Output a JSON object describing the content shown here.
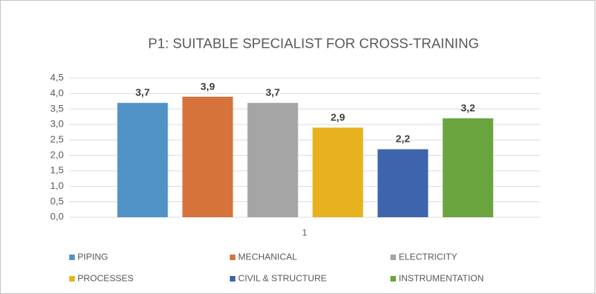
{
  "chart_data": {
    "type": "bar",
    "title": "P1: SUITABLE SPECIALIST FOR CROSS-TRAINING",
    "categories": [
      "1"
    ],
    "series": [
      {
        "name": "PIPING",
        "color": "#5193c6",
        "values": [
          3.7
        ],
        "value_labels": [
          "3,7"
        ]
      },
      {
        "name": "MECHANICAL",
        "color": "#d5733a",
        "values": [
          3.9
        ],
        "value_labels": [
          "3,9"
        ]
      },
      {
        "name": "ELECTRICITY",
        "color": "#a5a5a5",
        "values": [
          3.7
        ],
        "value_labels": [
          "3,7"
        ]
      },
      {
        "name": "PROCESSES",
        "color": "#e8b21f",
        "values": [
          2.9
        ],
        "value_labels": [
          "2,9"
        ]
      },
      {
        "name": "CIVIL & STRUCTURE",
        "color": "#3e64ae",
        "values": [
          2.2
        ],
        "value_labels": [
          "2,2"
        ]
      },
      {
        "name": "INSTRUMENTATION",
        "color": "#6aa43f",
        "values": [
          3.2
        ],
        "value_labels": [
          "3,2"
        ]
      }
    ],
    "ylim": [
      0,
      4.5
    ],
    "yticks": [
      {
        "value": 0,
        "label": "0,0"
      },
      {
        "value": 0.5,
        "label": "0,5"
      },
      {
        "value": 1,
        "label": "1,0"
      },
      {
        "value": 1.5,
        "label": "1,5"
      },
      {
        "value": 2,
        "label": "2,0"
      },
      {
        "value": 2.5,
        "label": "2,5"
      },
      {
        "value": 3,
        "label": "3,0"
      },
      {
        "value": 3.5,
        "label": "3,5"
      },
      {
        "value": 4,
        "label": "4,0"
      },
      {
        "value": 4.5,
        "label": "4,5"
      }
    ],
    "grid": true,
    "legend": "bottom"
  }
}
